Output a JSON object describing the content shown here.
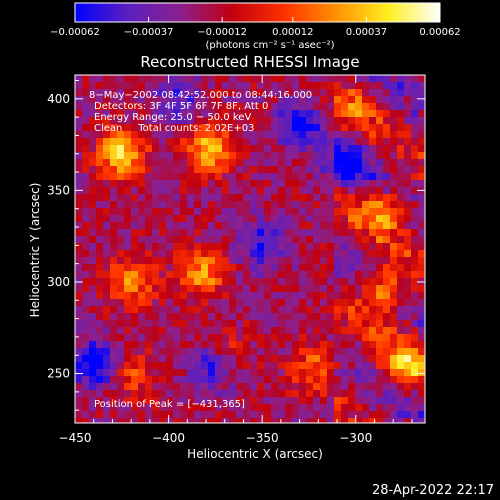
{
  "chart_data": {
    "type": "heatmap",
    "title": "Reconstructed RHESSI Image",
    "xlabel": "Heliocentric X (arcsec)",
    "ylabel": "Heliocentric Y (arcsec)",
    "xlim": [
      -450,
      -263
    ],
    "ylim": [
      223,
      413
    ],
    "x_ticks": [
      -450,
      -400,
      -350,
      -300
    ],
    "x_tick_labels": [
      "−450",
      "−400",
      "−350",
      "−300"
    ],
    "y_ticks": [
      250,
      300,
      350,
      400
    ],
    "y_tick_labels": [
      "250",
      "300",
      "350",
      "400"
    ],
    "colorbar": {
      "range": [
        -0.00062,
        0.00062
      ],
      "ticks": [
        -0.00062,
        -0.00037,
        -0.00012,
        0.00012,
        0.00037,
        0.00062
      ],
      "tick_labels": [
        "−0.00062",
        "−0.00037",
        "−0.00012",
        "0.00012",
        "0.00037",
        "0.00062"
      ],
      "unit_label": "(photons cm⁻² s⁻¹ asec⁻²)",
      "colors": [
        "#0000ff",
        "#5a1fc0",
        "#8a2090",
        "#c00010",
        "#ff3000",
        "#ff9000",
        "#ffee20",
        "#ffffff"
      ]
    },
    "annotations": [
      "8−May−2002 08:42:52.000 to 08:44:16.000",
      "Detectors: 3F 4F 5F 6F 7F 8F, Att 0",
      "Energy Range: 25.0 − 50.0 keV",
      "Clean     Total counts: 2.02E+03"
    ],
    "peak_label": "Position of Peak = [−431,365]",
    "peak": [
      -431,
      365
    ],
    "grid": false,
    "hot_spots": [
      {
        "x": -425,
        "y": 370,
        "value": 0.0006
      },
      {
        "x": -378,
        "y": 372,
        "value": 0.00055
      },
      {
        "x": -382,
        "y": 305,
        "value": 0.00045
      },
      {
        "x": -420,
        "y": 300,
        "value": 0.0004
      },
      {
        "x": -370,
        "y": 260,
        "value": 0.00035
      },
      {
        "x": -285,
        "y": 295,
        "value": 0.0005
      },
      {
        "x": -285,
        "y": 340,
        "value": 0.00042
      },
      {
        "x": -275,
        "y": 255,
        "value": 0.00045
      },
      {
        "x": -322,
        "y": 252,
        "value": 0.00035
      },
      {
        "x": -300,
        "y": 395,
        "value": 0.00025
      },
      {
        "x": -420,
        "y": 250,
        "value": 0.0003
      }
    ],
    "cold_spots": [
      {
        "x": -438,
        "y": 255,
        "value": -0.00055
      },
      {
        "x": -375,
        "y": 255,
        "value": -0.0005
      },
      {
        "x": -330,
        "y": 385,
        "value": -0.00045
      },
      {
        "x": -305,
        "y": 365,
        "value": -0.0004
      },
      {
        "x": -350,
        "y": 320,
        "value": -0.0004
      },
      {
        "x": -395,
        "y": 400,
        "value": -0.0003
      }
    ]
  },
  "footer_timestamp": "28-Apr-2022 22:17"
}
